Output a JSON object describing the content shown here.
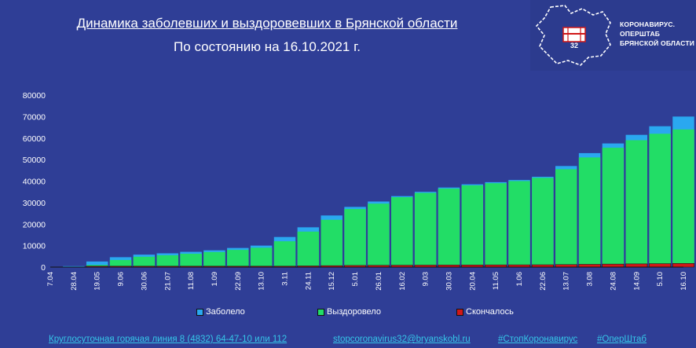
{
  "header": {
    "title": "Динамика заболевших и выздоровевших в Брянской области",
    "subtitle": "По состоянию на 16.10.2021 г."
  },
  "logo": {
    "line1": "КОРОНАВИРУС.",
    "line2": "ОПЕРШТАБ",
    "line3": "БРЯНСКОЙ ОБЛАСТИ",
    "badge": "32"
  },
  "colors": {
    "background": "#2f3e96",
    "infected": "#2aa8f0",
    "recovered": "#22dd66",
    "died": "#d01818",
    "link": "#35c6e8"
  },
  "chart_data": {
    "type": "bar",
    "title": "Динамика заболевших и выздоровевших в Брянской области",
    "subtitle": "По состоянию на 16.10.2021 г.",
    "x_tick_labels": [
      "7.04",
      "28.04",
      "19.05",
      "9.06",
      "30.06",
      "21.07",
      "11.08",
      "1.09",
      "22.09",
      "13.10",
      "3.11",
      "24.11",
      "15.12",
      "5.01",
      "26.01",
      "16.02",
      "9.03",
      "30.03",
      "20.04",
      "11.05",
      "1.06",
      "22.06",
      "13.07",
      "3.08",
      "24.08",
      "14.09",
      "5.10",
      "16.10"
    ],
    "y_ticks": [
      0,
      10000,
      20000,
      30000,
      40000,
      50000,
      60000,
      70000,
      80000
    ],
    "ylim": [
      0,
      80000
    ],
    "grid": false,
    "legend_position": "bottom",
    "series": [
      {
        "name": "Заболело",
        "color": "#2aa8f0",
        "values": [
          0,
          400,
          2600,
          4600,
          5800,
          6400,
          7100,
          7800,
          8900,
          10000,
          14000,
          18500,
          24000,
          28000,
          30500,
          33000,
          35000,
          37000,
          38500,
          39500,
          40500,
          42000,
          47000,
          53000,
          57500,
          61500,
          65500,
          70000
        ]
      },
      {
        "name": "Выздоровело",
        "color": "#22dd66",
        "values": [
          0,
          0,
          1000,
          3300,
          4800,
          5500,
          6200,
          7000,
          8000,
          9000,
          12000,
          16500,
          22000,
          27000,
          29500,
          32500,
          34500,
          36500,
          38000,
          39000,
          40000,
          41500,
          45500,
          51000,
          55500,
          59000,
          62000,
          64000
        ]
      },
      {
        "name": "Скончалось",
        "color": "#d01818",
        "values": [
          0,
          0,
          20,
          60,
          100,
          150,
          190,
          230,
          280,
          330,
          420,
          540,
          660,
          770,
          830,
          880,
          920,
          960,
          990,
          1020,
          1050,
          1080,
          1180,
          1290,
          1400,
          1500,
          1600,
          1700
        ]
      }
    ]
  },
  "legend": {
    "infected": "Заболело",
    "recovered": "Выздоровело",
    "died": "Скончалось"
  },
  "footer": {
    "hotline": "Круглосуточная горячая линия 8 (4832) 64-47-10 или 112",
    "email": "stopcoronavirus32@bryanskobl.ru",
    "tag1": "#СтопКоронавирус",
    "tag2": "#ОперШтаб"
  }
}
